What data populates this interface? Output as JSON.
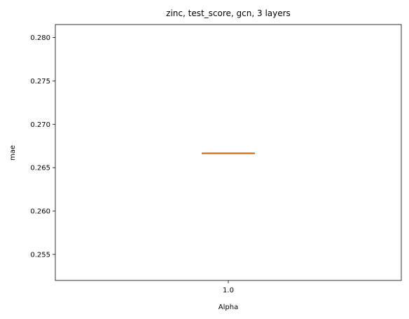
{
  "chart_data": {
    "type": "box",
    "title": "zinc, test_score, gcn, 3 layers",
    "xlabel": "Alpha",
    "ylabel": "mae",
    "categories": [
      "1.0"
    ],
    "ylim": [
      0.252,
      0.2815
    ],
    "yticks": [
      "0.255",
      "0.260",
      "0.265",
      "0.270",
      "0.275",
      "0.280"
    ],
    "series": [
      {
        "min": 0.26665,
        "q1": 0.26665,
        "median": 0.26665,
        "q3": 0.26665,
        "max": 0.26665
      }
    ],
    "grid": false,
    "colors": {
      "box": "#000000",
      "median": "#ff7f0e"
    }
  }
}
